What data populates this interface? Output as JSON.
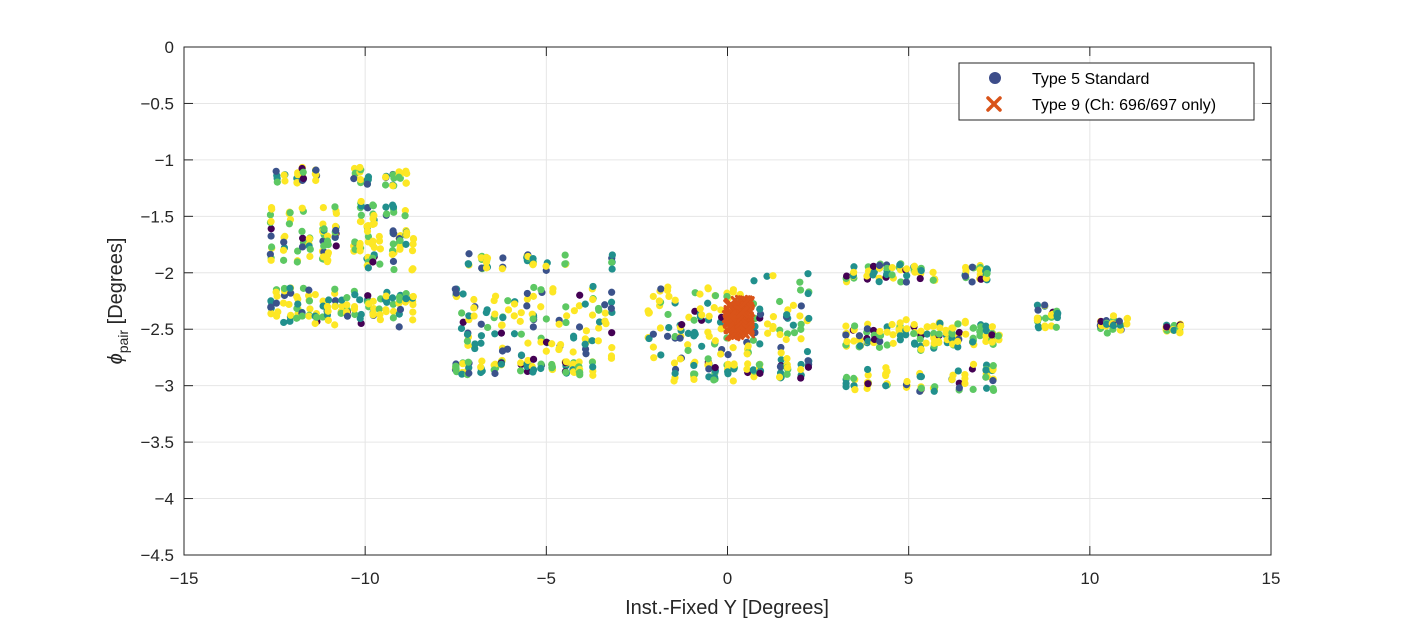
{
  "chart_data": {
    "type": "scatter",
    "title": "",
    "xlabel": "Inst.-Fixed Y [Degrees]",
    "ylabel": {
      "symbol": "ϕ",
      "subscript": "pair",
      "unit": " [Degrees]"
    },
    "xlim": [
      -15,
      15
    ],
    "ylim": [
      -4.5,
      0
    ],
    "x_ticks": [
      -15,
      -10,
      -5,
      0,
      5,
      10,
      15
    ],
    "y_ticks": [
      0,
      -0.5,
      -1,
      -1.5,
      -2,
      -2.5,
      -3,
      -3.5,
      -4,
      -4.5
    ],
    "grid": true,
    "legend_position": "top-right",
    "colormap": [
      "#440154",
      "#3b528b",
      "#21908d",
      "#5dc863",
      "#fde725"
    ],
    "series": [
      {
        "name": "Type 5 Standard",
        "marker": "circle",
        "legend_color": "#3d4d8a",
        "clusters": [
          {
            "x": [
              -12.6,
              -8.7
            ],
            "y_bands": [
              [
                -2.5,
                -2.1
              ],
              [
                -2.0,
                -1.6
              ],
              [
                -1.7,
                -1.35
              ],
              [
                -1.25,
                -1.05
              ]
            ]
          },
          {
            "x": [
              -7.5,
              -3.2
            ],
            "y_bands": [
              [
                -2.8,
                -2.05
              ],
              [
                -2.92,
                -2.75
              ],
              [
                -2.0,
                -1.8
              ]
            ]
          },
          {
            "x": [
              -2.2,
              2.2
            ],
            "y_bands": [
              [
                -2.85,
                -1.98
              ],
              [
                -2.98,
                -2.75
              ]
            ]
          },
          {
            "x": [
              3.3,
              7.5
            ],
            "y_bands": [
              [
                -2.7,
                -2.4
              ],
              [
                -3.12,
                -2.8
              ],
              [
                -2.1,
                -1.9
              ]
            ]
          },
          {
            "x": [
              8.6,
              9.1
            ],
            "y_bands": [
              [
                -2.55,
                -2.25
              ]
            ]
          },
          {
            "x": [
              10.3,
              11.0
            ],
            "y_bands": [
              [
                -2.55,
                -2.38
              ]
            ]
          },
          {
            "x": [
              12.1,
              12.5
            ],
            "y_bands": [
              [
                -2.58,
                -2.4
              ]
            ]
          }
        ]
      },
      {
        "name": "Type 9 (Ch: 696/697 only)",
        "marker": "x",
        "color": "#d95319",
        "x_range": [
          0.0,
          0.6
        ],
        "y_range": [
          -2.55,
          -2.25
        ]
      }
    ]
  }
}
